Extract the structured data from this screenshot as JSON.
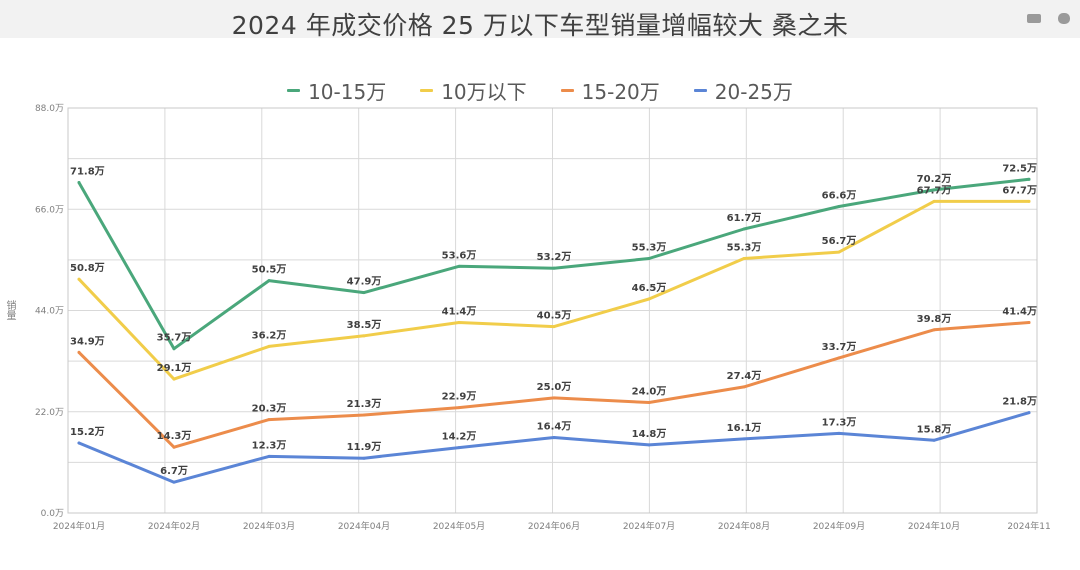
{
  "title": "2024 年成交价格 25 万以下车型销量增幅较大 桑之未",
  "ylabel": "销量",
  "chart_data": {
    "type": "line",
    "title": "2024 年成交价格 25 万以下车型销量增幅较大 桑之未",
    "xlabel": "",
    "ylabel": "销量",
    "ylim": [
      0,
      88
    ],
    "yticks": [
      "0.0万",
      "22.0万",
      "44.0万",
      "66.0万",
      "88.0万"
    ],
    "categories": [
      "2024年01月",
      "2024年02月",
      "2024年03月",
      "2024年04月",
      "2024年05月",
      "2024年06月",
      "2024年07月",
      "2024年08月",
      "2024年09月",
      "2024年10月",
      "2024年11"
    ],
    "grid": true,
    "legend_position": "top",
    "series": [
      {
        "name": "10-15万",
        "color": "#4aa77b",
        "values": [
          71.8,
          35.7,
          50.5,
          47.9,
          53.6,
          53.2,
          55.3,
          61.7,
          66.6,
          70.2,
          72.5
        ]
      },
      {
        "name": "10万以下",
        "color": "#f1cd4a",
        "values": [
          50.8,
          29.1,
          36.2,
          38.5,
          41.4,
          40.5,
          46.5,
          55.3,
          56.7,
          67.7,
          67.7
        ]
      },
      {
        "name": "15-20万",
        "color": "#ec8c4b",
        "values": [
          34.9,
          14.3,
          20.3,
          21.3,
          22.9,
          25.0,
          24.0,
          27.4,
          33.7,
          39.8,
          41.4
        ]
      },
      {
        "name": "20-25万",
        "color": "#5b85d6",
        "values": [
          15.2,
          6.7,
          12.3,
          11.9,
          14.2,
          16.4,
          14.8,
          16.1,
          17.3,
          15.8,
          21.8
        ]
      }
    ],
    "label_unit": "万"
  }
}
